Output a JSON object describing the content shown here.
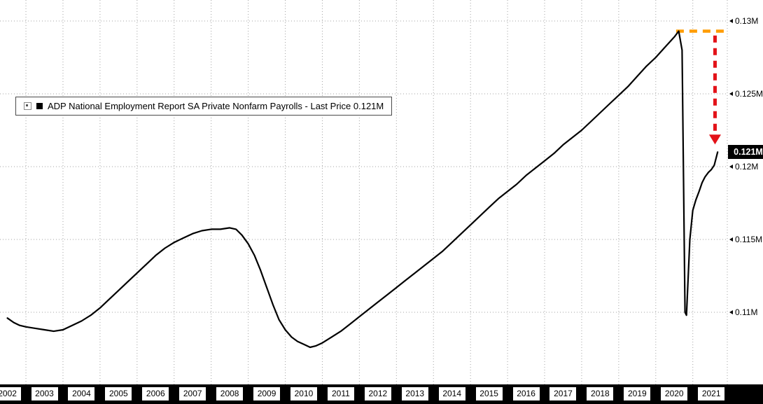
{
  "chart_data": {
    "type": "line",
    "title": "",
    "legend": "ADP National Employment Report SA Private Nonfarm Payrolls - Last Price 0.121M",
    "last_price": "0.121M",
    "legend_position": "top-left",
    "grid": "dotted",
    "x_range": [
      2001.8,
      2021.45
    ],
    "y_range": [
      0.10505,
      0.13144
    ],
    "x_axis": {
      "years": [
        "2002",
        "2003",
        "2004",
        "2005",
        "2006",
        "2007",
        "2008",
        "2009",
        "2010",
        "2011",
        "2012",
        "2013",
        "2014",
        "2015",
        "2016",
        "2017",
        "2018",
        "2019",
        "2020",
        "2021"
      ]
    },
    "y_axis": {
      "ticks": [
        {
          "value": 0.13,
          "label": "0.13M"
        },
        {
          "value": 0.125,
          "label": "0.125M"
        },
        {
          "value": 0.12,
          "label": "0.12M"
        },
        {
          "value": 0.115,
          "label": "0.115M"
        },
        {
          "value": 0.11,
          "label": "0.11M"
        }
      ]
    },
    "series": [
      {
        "name": "ADP National Employment Report SA Private Nonfarm Payrolls",
        "color": "#000000",
        "points": [
          [
            2002.0,
            0.1096
          ],
          [
            2002.17,
            0.1093
          ],
          [
            2002.33,
            0.1091
          ],
          [
            2002.5,
            0.109
          ],
          [
            2002.75,
            0.1089
          ],
          [
            2003.0,
            0.1088
          ],
          [
            2003.25,
            0.1087
          ],
          [
            2003.5,
            0.1088
          ],
          [
            2003.75,
            0.1091
          ],
          [
            2004.0,
            0.1094
          ],
          [
            2004.25,
            0.1098
          ],
          [
            2004.5,
            0.1103
          ],
          [
            2004.75,
            0.1109
          ],
          [
            2005.0,
            0.1115
          ],
          [
            2005.25,
            0.1121
          ],
          [
            2005.5,
            0.1127
          ],
          [
            2005.75,
            0.1133
          ],
          [
            2006.0,
            0.1139
          ],
          [
            2006.25,
            0.1144
          ],
          [
            2006.5,
            0.1148
          ],
          [
            2006.75,
            0.1151
          ],
          [
            2007.0,
            0.1154
          ],
          [
            2007.25,
            0.1156
          ],
          [
            2007.5,
            0.1157
          ],
          [
            2007.75,
            0.1157
          ],
          [
            2008.0,
            0.1158
          ],
          [
            2008.17,
            0.1157
          ],
          [
            2008.33,
            0.1153
          ],
          [
            2008.5,
            0.1147
          ],
          [
            2008.67,
            0.1139
          ],
          [
            2008.83,
            0.1129
          ],
          [
            2009.0,
            0.1117
          ],
          [
            2009.17,
            0.1105
          ],
          [
            2009.33,
            0.1095
          ],
          [
            2009.5,
            0.1088
          ],
          [
            2009.67,
            0.1083
          ],
          [
            2009.83,
            0.108
          ],
          [
            2010.0,
            0.1078
          ],
          [
            2010.17,
            0.1076
          ],
          [
            2010.33,
            0.1077
          ],
          [
            2010.5,
            0.1079
          ],
          [
            2010.75,
            0.1083
          ],
          [
            2011.0,
            0.1087
          ],
          [
            2011.25,
            0.1092
          ],
          [
            2011.5,
            0.1097
          ],
          [
            2011.75,
            0.1102
          ],
          [
            2012.0,
            0.1107
          ],
          [
            2012.25,
            0.1112
          ],
          [
            2012.5,
            0.1117
          ],
          [
            2012.75,
            0.1122
          ],
          [
            2013.0,
            0.1127
          ],
          [
            2013.25,
            0.1132
          ],
          [
            2013.5,
            0.1137
          ],
          [
            2013.75,
            0.1142
          ],
          [
            2014.0,
            0.1148
          ],
          [
            2014.25,
            0.1154
          ],
          [
            2014.5,
            0.116
          ],
          [
            2014.75,
            0.1166
          ],
          [
            2015.0,
            0.1172
          ],
          [
            2015.25,
            0.1178
          ],
          [
            2015.5,
            0.1183
          ],
          [
            2015.75,
            0.1188
          ],
          [
            2016.0,
            0.1194
          ],
          [
            2016.25,
            0.1199
          ],
          [
            2016.5,
            0.1204
          ],
          [
            2016.75,
            0.1209
          ],
          [
            2017.0,
            0.1215
          ],
          [
            2017.25,
            0.122
          ],
          [
            2017.5,
            0.1225
          ],
          [
            2017.75,
            0.1231
          ],
          [
            2018.0,
            0.1237
          ],
          [
            2018.25,
            0.1243
          ],
          [
            2018.5,
            0.1249
          ],
          [
            2018.75,
            0.1255
          ],
          [
            2019.0,
            0.1262
          ],
          [
            2019.25,
            0.1269
          ],
          [
            2019.5,
            0.1275
          ],
          [
            2019.75,
            0.1282
          ],
          [
            2020.0,
            0.1289
          ],
          [
            2020.12,
            0.1293
          ],
          [
            2020.21,
            0.128
          ],
          [
            2020.29,
            0.11
          ],
          [
            2020.33,
            0.1098
          ],
          [
            2020.42,
            0.115
          ],
          [
            2020.5,
            0.117
          ],
          [
            2020.58,
            0.1177
          ],
          [
            2020.67,
            0.1183
          ],
          [
            2020.75,
            0.1189
          ],
          [
            2020.83,
            0.1193
          ],
          [
            2020.92,
            0.1196
          ],
          [
            2021.0,
            0.1198
          ],
          [
            2021.08,
            0.1201
          ],
          [
            2021.17,
            0.121
          ]
        ]
      }
    ],
    "annotations": {
      "peak_dashed_line": {
        "value": 0.1293,
        "x_start": 2020.05,
        "x_end": 2021.4,
        "color": "#ff9c00",
        "style": "dashed"
      },
      "drop_arrow": {
        "x": 2021.1,
        "from": 0.129,
        "to": 0.1222,
        "color": "#e31219",
        "style": "dashed"
      },
      "last_price_badge": {
        "label": "0.121M",
        "value": 0.121,
        "bg": "#000000",
        "fg": "#ffffff"
      }
    }
  }
}
